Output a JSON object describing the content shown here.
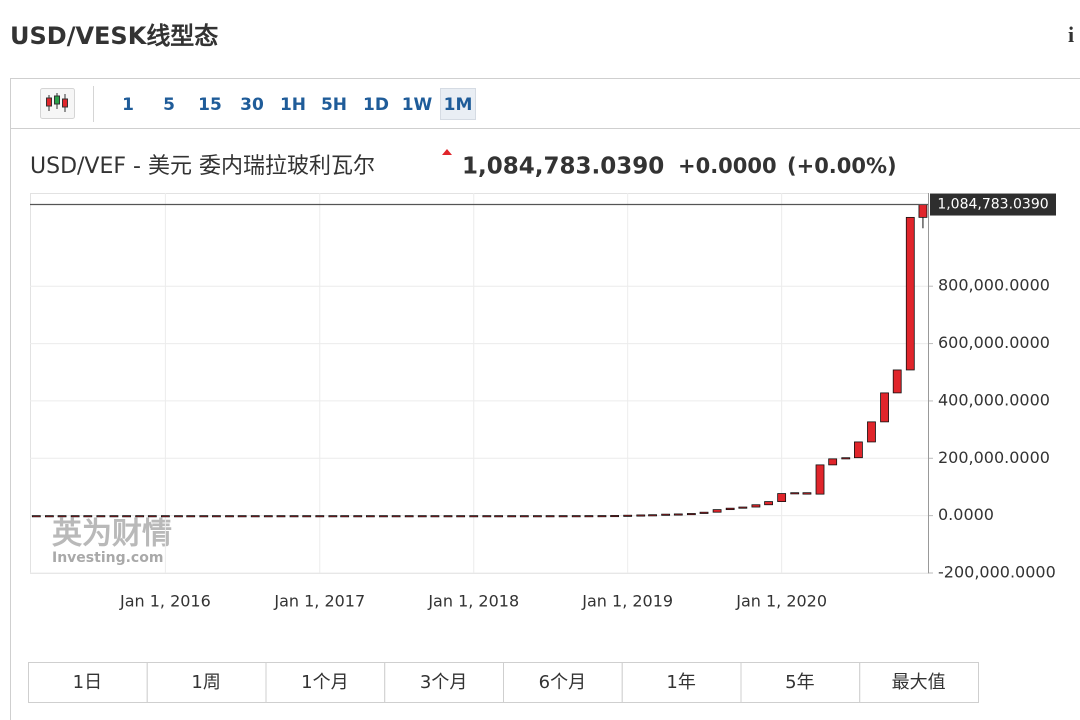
{
  "page_title": "USD/VESK线型态",
  "info_icon": "i",
  "intervals": [
    "1",
    "5",
    "15",
    "30",
    "1H",
    "5H",
    "1D",
    "1W",
    "1M"
  ],
  "active_interval": 8,
  "instrument": "USD/VEF - 美元 委内瑞拉玻利瓦尔",
  "price": "1,084,783.0390",
  "change": "+0.0000",
  "change_pct": "(+0.00%)",
  "watermark": {
    "cn": "英为财情",
    "en": "Investing.com"
  },
  "chart_data": {
    "type": "candlestick",
    "x": [
      "2015-03-01",
      "2015-04-01",
      "2015-05-01",
      "2015-06-01",
      "2015-07-01",
      "2015-08-01",
      "2015-09-01",
      "2015-10-01",
      "2015-11-01",
      "2015-12-01",
      "2016-01-01",
      "2016-02-01",
      "2016-03-01",
      "2016-04-01",
      "2016-05-01",
      "2016-06-01",
      "2016-07-01",
      "2016-08-01",
      "2016-09-01",
      "2016-10-01",
      "2016-11-01",
      "2016-12-01",
      "2017-01-01",
      "2017-02-01",
      "2017-03-01",
      "2017-04-01",
      "2017-05-01",
      "2017-06-01",
      "2017-07-01",
      "2017-08-01",
      "2017-09-01",
      "2017-10-01",
      "2017-11-01",
      "2017-12-01",
      "2018-01-01",
      "2018-02-01",
      "2018-03-01",
      "2018-04-01",
      "2018-05-01",
      "2018-06-01",
      "2018-07-01",
      "2018-08-01",
      "2018-09-01",
      "2018-10-01",
      "2018-11-01",
      "2018-12-01",
      "2019-01-01",
      "2019-02-01",
      "2019-03-01",
      "2019-04-01",
      "2019-05-01",
      "2019-06-01",
      "2019-07-01",
      "2019-08-01",
      "2019-09-01",
      "2019-10-01",
      "2019-11-01",
      "2019-12-01",
      "2020-01-01",
      "2020-02-01",
      "2020-03-01",
      "2020-04-01",
      "2020-05-01",
      "2020-06-01",
      "2020-07-01",
      "2020-08-01",
      "2020-09-01",
      "2020-10-01",
      "2020-11-01",
      "2020-12-01"
    ],
    "open": [
      1,
      1,
      1,
      1,
      1,
      1,
      1,
      1,
      1,
      1,
      1,
      1,
      1,
      1,
      1,
      1,
      1,
      1,
      1,
      1,
      1,
      1,
      1,
      1,
      1,
      2,
      2,
      2,
      2,
      2,
      2,
      2,
      2,
      3,
      3,
      3,
      3,
      4,
      5,
      8,
      12,
      20,
      60,
      100,
      150,
      250,
      650,
      1500,
      2500,
      3300,
      5200,
      6000,
      7500,
      12000,
      21000,
      26000,
      30000,
      38000,
      49000,
      77000,
      80000,
      75000,
      177000,
      198000,
      202000,
      257000,
      327000,
      428000,
      508000,
      1040000
    ],
    "high": [
      1,
      1,
      1,
      1,
      1,
      1,
      1,
      1,
      1,
      1,
      1,
      1,
      1,
      1,
      1,
      1,
      1,
      1,
      1,
      1,
      1,
      1,
      1,
      1,
      2,
      2,
      2,
      2,
      2,
      2,
      2,
      2,
      3,
      3,
      3,
      3,
      4,
      5,
      8,
      12,
      20,
      60,
      100,
      150,
      250,
      650,
      1500,
      2500,
      3300,
      5200,
      6000,
      7500,
      12000,
      21000,
      26000,
      30000,
      38000,
      49000,
      77000,
      80000,
      80000,
      177000,
      198000,
      202000,
      257000,
      327000,
      428000,
      508000,
      1040000,
      1084783.039
    ],
    "low": [
      1,
      1,
      1,
      1,
      1,
      1,
      1,
      1,
      1,
      1,
      1,
      1,
      1,
      1,
      1,
      1,
      1,
      1,
      1,
      1,
      1,
      1,
      1,
      1,
      1,
      2,
      2,
      2,
      2,
      2,
      2,
      2,
      2,
      3,
      3,
      3,
      3,
      4,
      5,
      8,
      12,
      20,
      60,
      100,
      150,
      250,
      650,
      1500,
      2500,
      3300,
      5200,
      6000,
      7500,
      12000,
      21000,
      26000,
      30000,
      38000,
      49000,
      77000,
      75000,
      75000,
      177000,
      198000,
      202000,
      257000,
      327000,
      428000,
      508000,
      1002000
    ],
    "close": [
      1,
      1,
      1,
      1,
      1,
      1,
      1,
      1,
      1,
      1,
      1,
      1,
      1,
      1,
      1,
      1,
      1,
      1,
      1,
      1,
      1,
      1,
      1,
      1,
      2,
      2,
      2,
      2,
      2,
      2,
      2,
      2,
      3,
      3,
      3,
      3,
      4,
      5,
      8,
      12,
      20,
      60,
      100,
      150,
      250,
      650,
      1500,
      2500,
      3300,
      5200,
      6000,
      7500,
      12000,
      21000,
      26000,
      30000,
      38000,
      49000,
      77000,
      80000,
      75000,
      177000,
      198000,
      202000,
      257000,
      327000,
      428000,
      508000,
      1040000,
      1084783.039
    ],
    "color": "#e0252b",
    "xlim": [
      "2015-02-14",
      "2020-12-13"
    ],
    "xticks": [
      {
        "value": "2016-01-01",
        "label": "Jan 1, 2016"
      },
      {
        "value": "2017-01-01",
        "label": "Jan 1, 2017"
      },
      {
        "value": "2018-01-01",
        "label": "Jan 1, 2018"
      },
      {
        "value": "2019-01-01",
        "label": "Jan 1, 2019"
      },
      {
        "value": "2020-01-01",
        "label": "Jan 1, 2020"
      }
    ],
    "ylim": [
      -200000,
      1125000
    ],
    "yticks": [
      {
        "value": -200000,
        "label": "-200,000.0000"
      },
      {
        "value": 0,
        "label": "0.0000"
      },
      {
        "value": 200000,
        "label": "200,000.0000"
      },
      {
        "value": 400000,
        "label": "400,000.0000"
      },
      {
        "value": 600000,
        "label": "600,000.0000"
      },
      {
        "value": 800000,
        "label": "800,000.0000"
      }
    ],
    "grid": true
  },
  "ranges": [
    "1日",
    "1周",
    "1个月",
    "3个月",
    "6个月",
    "1年",
    "5年",
    "最大值"
  ]
}
